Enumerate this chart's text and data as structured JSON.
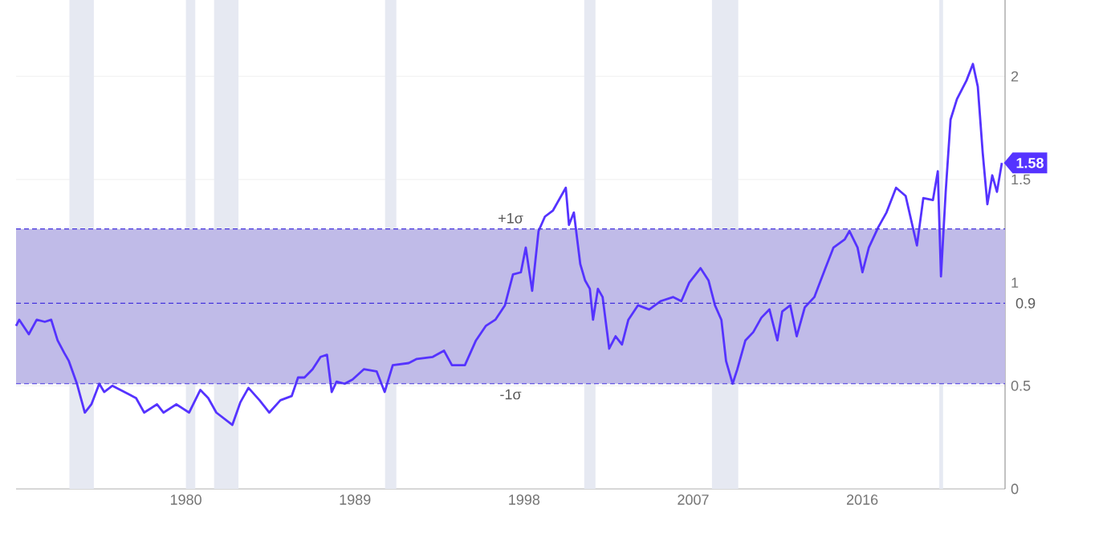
{
  "chart_data": {
    "type": "line",
    "x": [
      1970.96,
      1971.13,
      1971.64,
      1972.06,
      1972.49,
      1972.83,
      1973.17,
      1973.52,
      1973.77,
      1974.2,
      1974.62,
      1974.97,
      1975.39,
      1975.65,
      1976.08,
      1976.93,
      1977.35,
      1977.78,
      1978.46,
      1978.81,
      1979.49,
      1980.17,
      1980.77,
      1981.19,
      1981.62,
      1982.47,
      1982.9,
      1983.33,
      1983.92,
      1984.44,
      1985.03,
      1985.63,
      1985.97,
      1986.31,
      1986.74,
      1987.17,
      1987.51,
      1987.76,
      1988.02,
      1988.45,
      1988.87,
      1989.47,
      1990.15,
      1990.58,
      1991.01,
      1991.86,
      1992.29,
      1993.14,
      1993.74,
      1994.16,
      1994.85,
      1995.44,
      1995.96,
      1996.47,
      1996.98,
      1997.41,
      1997.83,
      1998.09,
      1998.43,
      1998.77,
      1999.11,
      1999.54,
      2000.22,
      2000.39,
      2000.65,
      2000.99,
      2001.25,
      2001.5,
      2001.67,
      2001.93,
      2002.18,
      2002.53,
      2002.87,
      2003.21,
      2003.55,
      2004.06,
      2004.66,
      2005.26,
      2005.94,
      2006.37,
      2006.79,
      2007.39,
      2007.82,
      2008.16,
      2008.5,
      2008.75,
      2009.1,
      2009.35,
      2009.78,
      2010.2,
      2010.63,
      2011.06,
      2011.48,
      2011.74,
      2012.17,
      2012.51,
      2012.94,
      2013.45,
      2014.04,
      2014.47,
      2015.07,
      2015.32,
      2015.75,
      2016.01,
      2016.35,
      2016.86,
      2017.29,
      2017.8,
      2018.31,
      2018.91,
      2019.25,
      2019.76,
      2020.02,
      2020.19,
      2020.44,
      2020.7,
      2021.04,
      2021.55,
      2021.89,
      2022.15,
      2022.41,
      2022.66,
      2022.92,
      2023.17,
      2023.43
    ],
    "series": [
      {
        "color": "#5533ff",
        "values": [
          0.79,
          0.82,
          0.75,
          0.82,
          0.81,
          0.82,
          0.72,
          0.66,
          0.62,
          0.51,
          0.37,
          0.41,
          0.51,
          0.47,
          0.5,
          0.46,
          0.44,
          0.37,
          0.41,
          0.37,
          0.41,
          0.37,
          0.48,
          0.44,
          0.37,
          0.31,
          0.42,
          0.49,
          0.43,
          0.37,
          0.43,
          0.45,
          0.54,
          0.54,
          0.58,
          0.64,
          0.65,
          0.47,
          0.52,
          0.51,
          0.53,
          0.58,
          0.57,
          0.47,
          0.6,
          0.61,
          0.63,
          0.64,
          0.67,
          0.6,
          0.6,
          0.72,
          0.79,
          0.82,
          0.89,
          1.04,
          1.05,
          1.17,
          0.96,
          1.25,
          1.32,
          1.35,
          1.46,
          1.28,
          1.34,
          1.09,
          1.01,
          0.97,
          0.82,
          0.97,
          0.93,
          0.68,
          0.74,
          0.7,
          0.82,
          0.89,
          0.87,
          0.91,
          0.93,
          0.91,
          1.0,
          1.07,
          1.01,
          0.89,
          0.82,
          0.62,
          0.51,
          0.58,
          0.72,
          0.76,
          0.83,
          0.87,
          0.72,
          0.86,
          0.89,
          0.74,
          0.88,
          0.93,
          1.07,
          1.17,
          1.21,
          1.25,
          1.17,
          1.05,
          1.17,
          1.27,
          1.34,
          1.46,
          1.42,
          1.18,
          1.41,
          1.4,
          1.54,
          1.03,
          1.44,
          1.79,
          1.89,
          1.98,
          2.06,
          1.95,
          1.63,
          1.38,
          1.52,
          1.44,
          1.58
        ]
      }
    ],
    "xlim": [
      1970.96,
      2023.6
    ],
    "ylim": [
      0,
      2.37
    ],
    "xticks": [
      1980,
      1989,
      1998,
      2007,
      2016
    ],
    "yticks": [
      0,
      0.5,
      1,
      1.5,
      2
    ],
    "grid": "y",
    "bands": [
      {
        "axis": "x",
        "from": 1973.8,
        "to": 1975.1,
        "color": "#e6e9f2"
      },
      {
        "axis": "x",
        "from": 1980.0,
        "to": 1980.5,
        "color": "#e6e9f2"
      },
      {
        "axis": "x",
        "from": 1981.5,
        "to": 1982.8,
        "color": "#e6e9f2"
      },
      {
        "axis": "x",
        "from": 1990.6,
        "to": 1991.2,
        "color": "#e6e9f2"
      },
      {
        "axis": "x",
        "from": 2001.2,
        "to": 2001.8,
        "color": "#e6e9f2"
      },
      {
        "axis": "x",
        "from": 2008.0,
        "to": 2009.4,
        "color": "#e6e9f2"
      },
      {
        "axis": "x",
        "from": 2020.1,
        "to": 2020.3,
        "color": "#e6e9f2"
      },
      {
        "axis": "y",
        "from": 0.51,
        "to": 1.26,
        "color": "#c0bbe8"
      }
    ],
    "ref_lines": [
      {
        "axis": "y",
        "value": 1.26,
        "label": "+1σ",
        "color": "#4433dd",
        "line_style": "dashed"
      },
      {
        "axis": "y",
        "value": 0.9,
        "label": "0.9",
        "color": "#4433dd",
        "line_style": "dashed"
      },
      {
        "axis": "y",
        "value": 0.51,
        "label": "-1σ",
        "color": "#4433dd",
        "line_style": "dashed"
      }
    ],
    "annotations": [
      {
        "text": "1.58",
        "x": 2023.43,
        "y": 1.58
      }
    ]
  }
}
